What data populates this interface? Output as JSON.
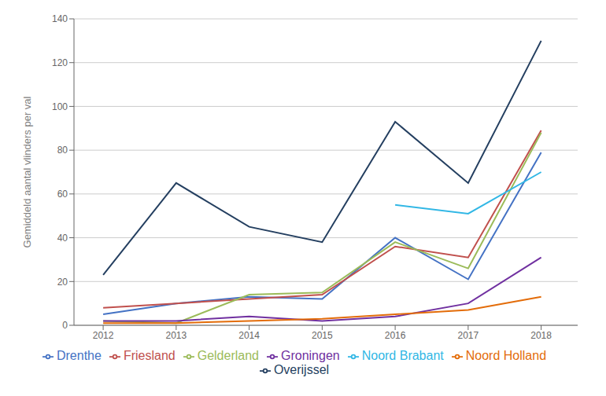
{
  "chart_data": {
    "type": "line",
    "x": [
      2012,
      2013,
      2014,
      2015,
      2016,
      2017,
      2018
    ],
    "series": [
      {
        "name": "Drenthe",
        "color": "#4472C4",
        "values": [
          5,
          10,
          13,
          12,
          40,
          21,
          79
        ]
      },
      {
        "name": "Friesland",
        "color": "#C0504D",
        "values": [
          8,
          10,
          12,
          14,
          36,
          31,
          89
        ]
      },
      {
        "name": "Gelderland",
        "color": "#9BBB59",
        "values": [
          2,
          1,
          14,
          15,
          38,
          26,
          88
        ]
      },
      {
        "name": "Groningen",
        "color": "#7030A0",
        "values": [
          2,
          2,
          4,
          2,
          4,
          10,
          31
        ]
      },
      {
        "name": "Noord Brabant",
        "color": "#31B7E5",
        "values": [
          null,
          null,
          null,
          null,
          55,
          51,
          70
        ]
      },
      {
        "name": "Noord Holland",
        "color": "#E36C09",
        "values": [
          1,
          1,
          2,
          3,
          5,
          7,
          13
        ]
      },
      {
        "name": "Overijssel",
        "color": "#243F60",
        "values": [
          23,
          65,
          45,
          38,
          93,
          65,
          130
        ]
      }
    ],
    "ylabel": "Gemiddeld aantal vlinders per val",
    "xlim": [
      2011.6,
      2018.5
    ],
    "xticks": [
      2012,
      2013,
      2014,
      2015,
      2016,
      2017,
      2018
    ],
    "ylim": [
      0,
      140
    ],
    "yticks": [
      0,
      20,
      40,
      60,
      80,
      100,
      120,
      140
    ],
    "grid": true,
    "legend": "bottom"
  }
}
